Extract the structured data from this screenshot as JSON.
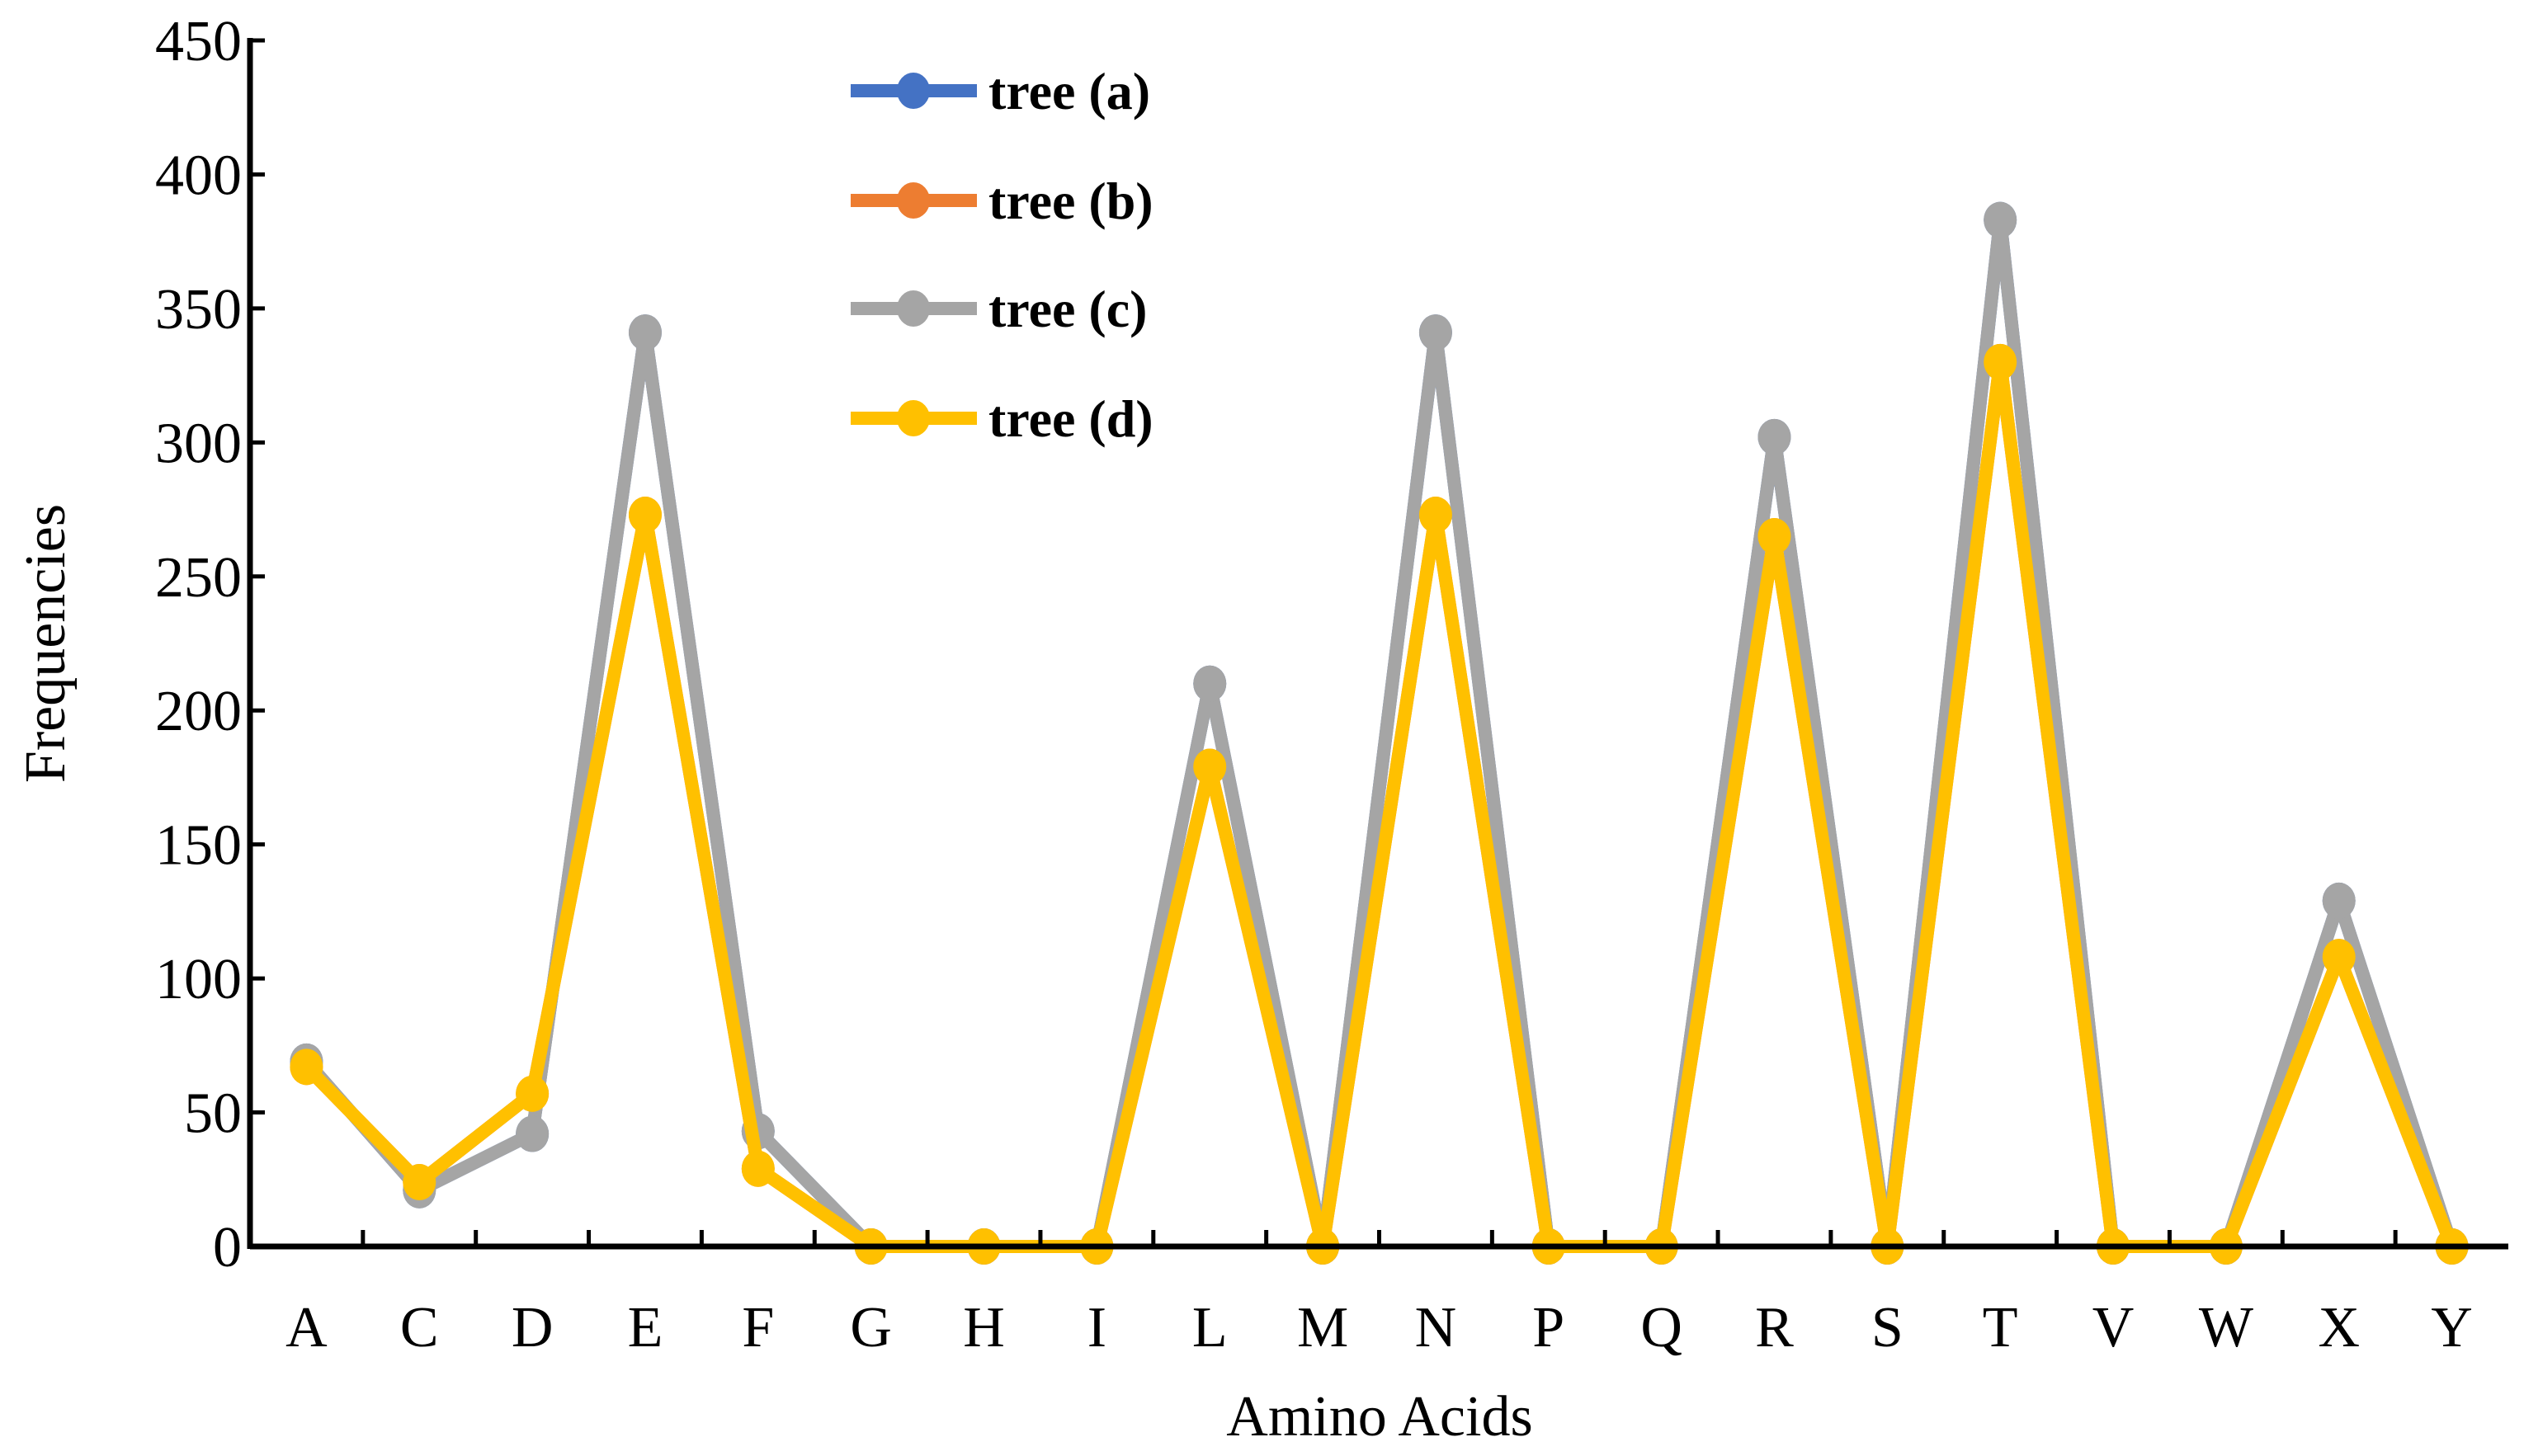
{
  "chart_data": {
    "type": "line",
    "title": "",
    "xlabel": "Amino Acids",
    "ylabel": "Frequencies",
    "ylim": [
      0,
      450
    ],
    "yticks": [
      0,
      50,
      100,
      150,
      200,
      250,
      300,
      350,
      400,
      450
    ],
    "grid": false,
    "legend_placement": "top-center",
    "categories": [
      "A",
      "C",
      "D",
      "E",
      "F",
      "G",
      "H",
      "I",
      "L",
      "M",
      "N",
      "P",
      "Q",
      "R",
      "S",
      "T",
      "V",
      "W",
      "X",
      "Y"
    ],
    "series": [
      {
        "name": "tree (a)",
        "color": "#4472C4",
        "values": [
          69,
          21,
          42,
          341,
          43,
          0,
          0,
          0,
          210,
          0,
          341,
          0,
          0,
          302,
          0,
          383,
          0,
          0,
          129,
          0
        ]
      },
      {
        "name": "tree (b)",
        "color": "#ED7D31",
        "values": [
          67,
          24,
          57,
          273,
          29,
          0,
          0,
          0,
          179,
          0,
          273,
          0,
          0,
          265,
          0,
          330,
          0,
          0,
          108,
          0
        ]
      },
      {
        "name": "tree (c)",
        "color": "#A5A5A5",
        "values": [
          69,
          21,
          42,
          341,
          43,
          0,
          0,
          0,
          210,
          0,
          341,
          0,
          0,
          302,
          0,
          383,
          0,
          0,
          129,
          0
        ]
      },
      {
        "name": "tree (d)",
        "color": "#FFC000",
        "values": [
          67,
          24,
          57,
          273,
          29,
          0,
          0,
          0,
          179,
          0,
          273,
          0,
          0,
          265,
          0,
          330,
          0,
          0,
          108,
          0
        ]
      }
    ]
  }
}
